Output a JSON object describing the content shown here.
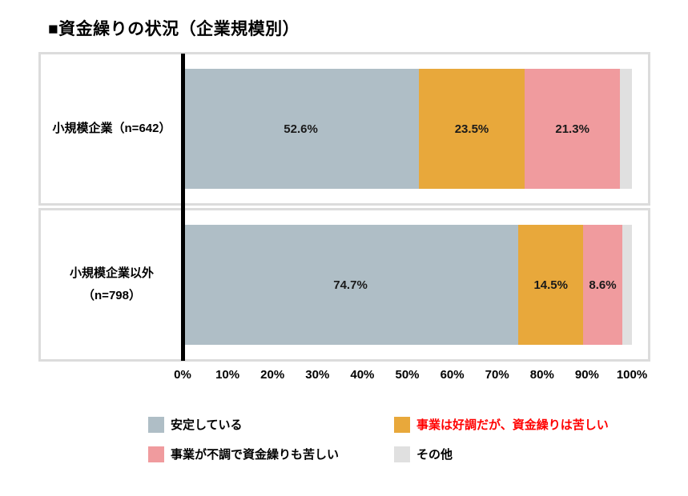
{
  "title": "■資金繰りの状況（企業規模別）",
  "colors": {
    "stable": "#afbec6",
    "good_business_tight_cash": "#e8a83b",
    "bad_business_tight_cash": "#f09b9e",
    "other": "#e0e0e0",
    "legend_highlight_text": "#ff0000",
    "axis_line": "#000000",
    "panel_border": "#dcdcdc"
  },
  "rows": [
    {
      "label_lines": [
        "小規模企業（n=642）"
      ],
      "segments": [
        {
          "series": "安定している",
          "value": 52.6,
          "label": "52.6%"
        },
        {
          "series": "事業は好調だが、資金繰りは苦しい",
          "value": 23.5,
          "label": "23.5%"
        },
        {
          "series": "事業が不調で資金繰りも苦しい",
          "value": 21.3,
          "label": "21.3%"
        },
        {
          "series": "その他",
          "value": 2.6,
          "label": ""
        }
      ]
    },
    {
      "label_lines": [
        "小規模企業以外",
        "（n=798）"
      ],
      "segments": [
        {
          "series": "安定している",
          "value": 74.7,
          "label": "74.7%"
        },
        {
          "series": "事業は好調だが、資金繰りは苦しい",
          "value": 14.5,
          "label": "14.5%"
        },
        {
          "series": "事業が不調で資金繰りも苦しい",
          "value": 8.6,
          "label": "8.6%"
        },
        {
          "series": "その他",
          "value": 2.2,
          "label": ""
        }
      ]
    }
  ],
  "axis": {
    "ticks": [
      "0%",
      "10%",
      "20%",
      "30%",
      "40%",
      "50%",
      "60%",
      "70%",
      "80%",
      "90%",
      "100%"
    ]
  },
  "legend": [
    {
      "label": "安定している",
      "swatch": "#afbec6",
      "text_color": "#000000"
    },
    {
      "label": "事業は好調だが、資金繰りは苦しい",
      "swatch": "#e8a83b",
      "text_color": "#ff0000"
    },
    {
      "label": "事業が不調で資金繰りも苦しい",
      "swatch": "#f09b9e",
      "text_color": "#000000"
    },
    {
      "label": "その他",
      "swatch": "#e0e0e0",
      "text_color": "#000000"
    }
  ],
  "chart_data": {
    "type": "bar",
    "orientation": "horizontal",
    "stacked": true,
    "title": "■資金繰りの状況（企業規模別）",
    "categories": [
      "小規模企業（n=642）",
      "小規模企業以外（n=798）"
    ],
    "series": [
      {
        "name": "安定している",
        "values": [
          52.6,
          74.7
        ],
        "color": "#afbec6"
      },
      {
        "name": "事業は好調だが、資金繰りは苦しい",
        "values": [
          23.5,
          14.5
        ],
        "color": "#e8a83b"
      },
      {
        "name": "事業が不調で資金繰りも苦しい",
        "values": [
          21.3,
          8.6
        ],
        "color": "#f09b9e"
      },
      {
        "name": "その他",
        "values": [
          2.6,
          2.2
        ],
        "color": "#e0e0e0"
      }
    ],
    "xlabel": "",
    "ylabel": "",
    "xlim": [
      0,
      100
    ],
    "x_tick_labels": [
      "0%",
      "10%",
      "20%",
      "30%",
      "40%",
      "50%",
      "60%",
      "70%",
      "80%",
      "90%",
      "100%"
    ],
    "grid": false,
    "legend_position": "bottom",
    "data_labels_unit": "%"
  }
}
